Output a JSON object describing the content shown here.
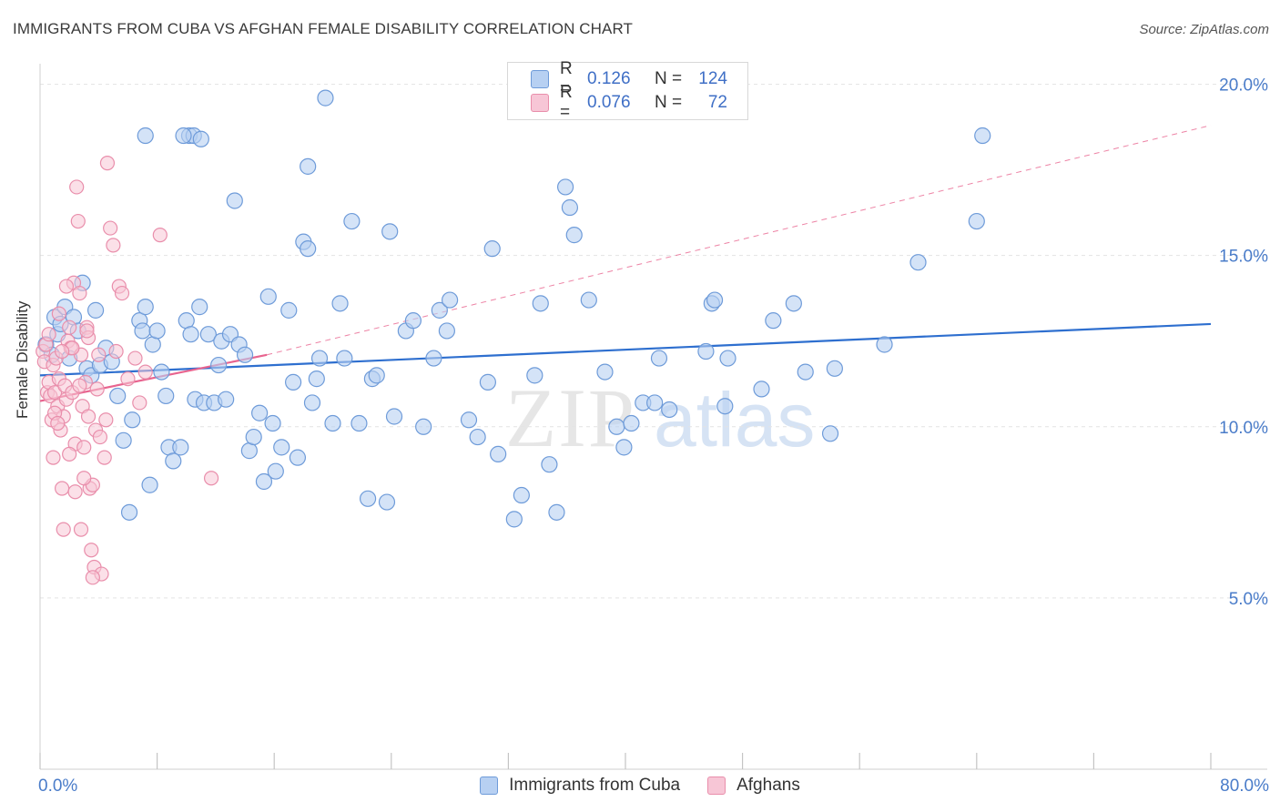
{
  "title": "IMMIGRANTS FROM CUBA VS AFGHAN FEMALE DISABILITY CORRELATION CHART",
  "source": "Source: ZipAtlas.com",
  "watermark": {
    "zip": "ZIP",
    "atlas": "atlas"
  },
  "colors": {
    "cuba_fill": "#b7d0f2",
    "cuba_stroke": "#6e9bd9",
    "cuba_line": "#2e6fcf",
    "afghan_fill": "#f7c6d6",
    "afghan_stroke": "#e98eab",
    "afghan_line": "#e8648f",
    "grid": "#e3e3e3",
    "tick_label": "#4a7cc9"
  },
  "legend": {
    "rows": [
      {
        "r_label": "R =",
        "r_value": "0.126",
        "n_label": "N =",
        "n_value": "124"
      },
      {
        "r_label": "R =",
        "r_value": "0.076",
        "n_label": "N =",
        "n_value": "72"
      }
    ]
  },
  "chart_data": {
    "type": "scatter",
    "title": "IMMIGRANTS FROM CUBA VS AFGHAN FEMALE DISABILITY CORRELATION CHART",
    "xlabel": "",
    "ylabel": "Female Disability",
    "xlim": [
      0,
      80
    ],
    "ylim": [
      0,
      20.6
    ],
    "x_tick_labels": [
      "0.0%",
      "80.0%"
    ],
    "y_ticks": [
      5,
      10,
      15,
      20
    ],
    "y_tick_labels": [
      "5.0%",
      "10.0%",
      "15.0%",
      "20.0%"
    ],
    "grid": true,
    "legend_position": "top-center",
    "series": [
      {
        "name": "Immigrants from Cuba",
        "r": 0.126,
        "n": 124,
        "trend": {
          "x": [
            0,
            80
          ],
          "y": [
            11.5,
            13.0
          ],
          "style": "solid"
        },
        "points": [
          [
            0.4,
            12.4
          ],
          [
            0.8,
            12.1
          ],
          [
            1.0,
            13.2
          ],
          [
            1.2,
            12.7
          ],
          [
            1.4,
            13.0
          ],
          [
            1.7,
            13.5
          ],
          [
            2.0,
            12.0
          ],
          [
            2.3,
            13.2
          ],
          [
            2.6,
            12.8
          ],
          [
            2.9,
            14.2
          ],
          [
            3.2,
            11.7
          ],
          [
            3.5,
            11.5
          ],
          [
            3.8,
            13.4
          ],
          [
            4.1,
            11.8
          ],
          [
            4.5,
            12.3
          ],
          [
            4.9,
            11.9
          ],
          [
            5.3,
            10.9
          ],
          [
            5.7,
            9.6
          ],
          [
            6.1,
            7.5
          ],
          [
            6.3,
            10.2
          ],
          [
            6.8,
            13.1
          ],
          [
            7.0,
            12.8
          ],
          [
            7.2,
            13.5
          ],
          [
            7.5,
            8.3
          ],
          [
            7.7,
            12.4
          ],
          [
            8.0,
            12.8
          ],
          [
            8.3,
            11.6
          ],
          [
            8.6,
            10.9
          ],
          [
            8.8,
            9.4
          ],
          [
            9.1,
            9.0
          ],
          [
            9.6,
            9.4
          ],
          [
            10.0,
            13.1
          ],
          [
            10.3,
            12.7
          ],
          [
            10.6,
            10.8
          ],
          [
            10.9,
            13.5
          ],
          [
            11.2,
            10.7
          ],
          [
            11.5,
            12.7
          ],
          [
            11.9,
            10.7
          ],
          [
            12.2,
            11.8
          ],
          [
            12.4,
            12.5
          ],
          [
            12.7,
            10.8
          ],
          [
            13.0,
            12.7
          ],
          [
            13.3,
            16.6
          ],
          [
            13.6,
            12.4
          ],
          [
            14.0,
            12.1
          ],
          [
            14.3,
            9.3
          ],
          [
            14.6,
            9.7
          ],
          [
            15.0,
            10.4
          ],
          [
            15.3,
            8.4
          ],
          [
            15.6,
            13.8
          ],
          [
            15.9,
            10.1
          ],
          [
            16.1,
            8.7
          ],
          [
            16.5,
            9.4
          ],
          [
            17.0,
            13.4
          ],
          [
            17.3,
            11.3
          ],
          [
            17.6,
            9.1
          ],
          [
            18.0,
            15.4
          ],
          [
            18.3,
            17.6
          ],
          [
            18.6,
            10.7
          ],
          [
            18.9,
            11.4
          ],
          [
            19.1,
            12.0
          ],
          [
            19.5,
            19.6
          ],
          [
            20.0,
            10.1
          ],
          [
            20.5,
            13.6
          ],
          [
            20.8,
            12.0
          ],
          [
            21.3,
            16.0
          ],
          [
            21.8,
            10.1
          ],
          [
            22.4,
            7.9
          ],
          [
            22.7,
            11.4
          ],
          [
            23.0,
            11.5
          ],
          [
            23.7,
            7.8
          ],
          [
            23.9,
            15.7
          ],
          [
            24.2,
            10.3
          ],
          [
            25.0,
            12.8
          ],
          [
            25.5,
            13.1
          ],
          [
            26.2,
            10.0
          ],
          [
            26.9,
            12.0
          ],
          [
            27.3,
            13.4
          ],
          [
            27.8,
            12.8
          ],
          [
            28.0,
            13.7
          ],
          [
            29.3,
            10.2
          ],
          [
            29.9,
            9.7
          ],
          [
            30.6,
            11.3
          ],
          [
            30.9,
            15.2
          ],
          [
            31.3,
            9.2
          ],
          [
            32.4,
            7.3
          ],
          [
            32.9,
            8.0
          ],
          [
            33.8,
            11.5
          ],
          [
            34.2,
            13.6
          ],
          [
            34.8,
            8.9
          ],
          [
            35.3,
            7.5
          ],
          [
            35.9,
            17.0
          ],
          [
            36.2,
            16.4
          ],
          [
            36.5,
            15.6
          ],
          [
            37.5,
            13.7
          ],
          [
            38.6,
            11.6
          ],
          [
            39.4,
            10.0
          ],
          [
            39.9,
            9.4
          ],
          [
            40.4,
            10.1
          ],
          [
            41.2,
            10.7
          ],
          [
            42.0,
            10.7
          ],
          [
            42.3,
            12.0
          ],
          [
            43.0,
            10.5
          ],
          [
            45.5,
            12.2
          ],
          [
            45.9,
            13.6
          ],
          [
            46.1,
            13.7
          ],
          [
            46.8,
            10.6
          ],
          [
            47.0,
            12.0
          ],
          [
            49.3,
            11.1
          ],
          [
            50.1,
            13.1
          ],
          [
            51.5,
            13.6
          ],
          [
            52.3,
            11.6
          ],
          [
            54.0,
            9.8
          ],
          [
            54.3,
            11.7
          ],
          [
            57.7,
            12.4
          ],
          [
            60.0,
            14.8
          ],
          [
            64.0,
            16.0
          ],
          [
            64.4,
            18.5
          ],
          [
            10.2,
            18.5
          ],
          [
            18.3,
            15.2
          ],
          [
            10.5,
            18.5
          ],
          [
            11.0,
            18.4
          ],
          [
            7.2,
            18.5
          ],
          [
            9.8,
            18.5
          ]
        ]
      },
      {
        "name": "Afghans",
        "r": 0.076,
        "n": 72,
        "trend": {
          "x": [
            0,
            15.5
          ],
          "y": [
            10.75,
            12.1
          ],
          "style": "solid",
          "extended": {
            "x": [
              15.5,
              80
            ],
            "y": [
              12.1,
              18.8
            ],
            "style": "dashed"
          }
        },
        "points": [
          [
            0.2,
            12.2
          ],
          [
            0.3,
            11.9
          ],
          [
            0.4,
            12.4
          ],
          [
            0.5,
            11.0
          ],
          [
            0.6,
            11.3
          ],
          [
            0.7,
            10.9
          ],
          [
            0.8,
            10.2
          ],
          [
            0.9,
            11.8
          ],
          [
            1.0,
            11.0
          ],
          [
            1.1,
            12.0
          ],
          [
            1.2,
            10.6
          ],
          [
            1.3,
            11.4
          ],
          [
            1.4,
            9.9
          ],
          [
            1.5,
            8.2
          ],
          [
            1.6,
            10.3
          ],
          [
            1.7,
            11.2
          ],
          [
            1.8,
            10.8
          ],
          [
            1.9,
            12.5
          ],
          [
            2.0,
            12.9
          ],
          [
            2.1,
            12.3
          ],
          [
            2.2,
            11.0
          ],
          [
            2.3,
            14.2
          ],
          [
            2.4,
            9.5
          ],
          [
            2.5,
            17.0
          ],
          [
            2.6,
            16.0
          ],
          [
            2.7,
            13.9
          ],
          [
            2.8,
            12.1
          ],
          [
            2.9,
            10.6
          ],
          [
            3.0,
            9.4
          ],
          [
            3.1,
            11.3
          ],
          [
            3.2,
            12.9
          ],
          [
            3.3,
            10.3
          ],
          [
            3.4,
            8.2
          ],
          [
            3.5,
            6.4
          ],
          [
            3.6,
            8.3
          ],
          [
            3.7,
            5.9
          ],
          [
            3.8,
            9.9
          ],
          [
            3.9,
            11.1
          ],
          [
            4.0,
            12.1
          ],
          [
            4.2,
            5.7
          ],
          [
            4.4,
            9.1
          ],
          [
            4.6,
            17.7
          ],
          [
            4.8,
            15.8
          ],
          [
            5.0,
            15.3
          ],
          [
            5.2,
            12.2
          ],
          [
            5.4,
            14.1
          ],
          [
            5.6,
            13.9
          ],
          [
            6.0,
            11.4
          ],
          [
            6.5,
            12.0
          ],
          [
            6.8,
            10.7
          ],
          [
            7.2,
            11.6
          ],
          [
            8.2,
            15.6
          ],
          [
            11.7,
            8.5
          ],
          [
            1.0,
            10.4
          ],
          [
            1.3,
            13.3
          ],
          [
            1.6,
            7.0
          ],
          [
            2.0,
            9.2
          ],
          [
            2.4,
            8.1
          ],
          [
            2.8,
            7.0
          ],
          [
            3.0,
            8.5
          ],
          [
            3.3,
            12.6
          ],
          [
            3.6,
            5.6
          ],
          [
            4.1,
            9.7
          ],
          [
            4.5,
            10.2
          ],
          [
            0.6,
            12.7
          ],
          [
            0.9,
            9.1
          ],
          [
            1.8,
            14.1
          ],
          [
            2.2,
            12.3
          ],
          [
            3.2,
            12.8
          ],
          [
            1.2,
            10.1
          ],
          [
            2.7,
            11.2
          ],
          [
            1.5,
            12.2
          ]
        ]
      }
    ]
  },
  "bottom_legend": {
    "items": [
      "Immigrants from Cuba",
      "Afghans"
    ]
  }
}
